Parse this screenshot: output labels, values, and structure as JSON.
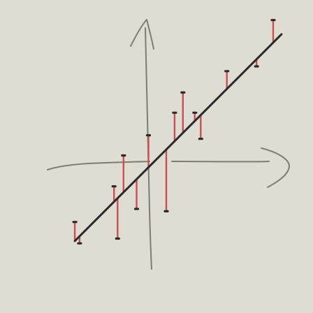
{
  "colors": {
    "background": "#dfddd1",
    "axis": "#7e7c75",
    "fit_line": "#2a2a28",
    "residual": "#c65055",
    "point": "#2a2a28"
  },
  "chart_data": {
    "type": "scatter",
    "title": "",
    "xlabel": "",
    "ylabel": "",
    "axes_style": "hand-drawn arrows, no ticks, no labels",
    "fit": {
      "slope": 1.0,
      "intercept": 0.0
    },
    "xlim": [
      -4,
      6
    ],
    "ylim": [
      -4,
      6
    ],
    "points": [
      {
        "x": -3.35,
        "y": -2.55
      },
      {
        "x": -3.15,
        "y": -3.45
      },
      {
        "x": -1.7,
        "y": -1.05
      },
      {
        "x": -1.55,
        "y": -3.25
      },
      {
        "x": -1.3,
        "y": 0.25
      },
      {
        "x": -0.75,
        "y": -2.0
      },
      {
        "x": -0.25,
        "y": 1.1
      },
      {
        "x": 0.5,
        "y": -2.1
      },
      {
        "x": 0.85,
        "y": 2.05
      },
      {
        "x": 1.2,
        "y": 2.9
      },
      {
        "x": 1.7,
        "y": 2.05
      },
      {
        "x": 1.95,
        "y": 0.95
      },
      {
        "x": 3.05,
        "y": 3.8
      },
      {
        "x": 4.3,
        "y": 4.0
      },
      {
        "x": 5.0,
        "y": 5.95
      }
    ]
  }
}
